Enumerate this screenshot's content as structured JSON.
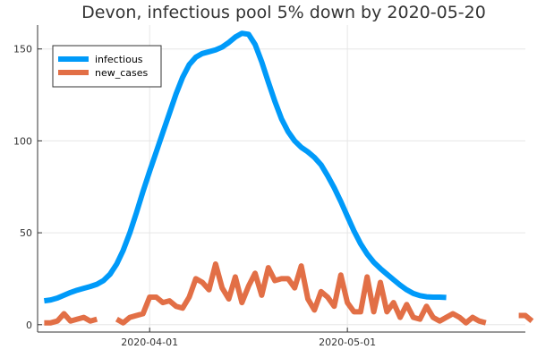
{
  "chart_data": {
    "type": "line",
    "title": "Devon, infectious pool 5% down by 2020-05-20",
    "xlabel": "",
    "ylabel": "",
    "x_start": "2020-03-16",
    "xlim": [
      "2020-03-15",
      "2020-05-28"
    ],
    "ylim": [
      -4,
      163
    ],
    "yticks": [
      0,
      50,
      100,
      150
    ],
    "xticks": [
      "2020-04-01",
      "2020-05-01"
    ],
    "grid": true,
    "legend": "top-left",
    "series": [
      {
        "name": "infectious",
        "color": "#009af9",
        "values": [
          13,
          13.5,
          14.5,
          16,
          17.5,
          18.8,
          19.8,
          20.8,
          22,
          24,
          27.5,
          33,
          40.5,
          50,
          61,
          72.5,
          83.5,
          94,
          104.5,
          115,
          125.5,
          134.5,
          141.5,
          145.5,
          147.5,
          148.5,
          149.5,
          151,
          153.5,
          156.5,
          158.5,
          158,
          152.5,
          143,
          132,
          121.5,
          112,
          105,
          100,
          96.5,
          94,
          91,
          87,
          81,
          74.5,
          67,
          59,
          51,
          44,
          38.5,
          34,
          30.5,
          27.5,
          24.5,
          21.5,
          19,
          17,
          15.8,
          15.2,
          15,
          15,
          14.8
        ]
      },
      {
        "name": "new_cases",
        "color": "#e26f46",
        "values": [
          1,
          1,
          2,
          6,
          2,
          3,
          4,
          2,
          3,
          null,
          null,
          3,
          1,
          4,
          5,
          6,
          15,
          15,
          12,
          13,
          10,
          9,
          15,
          25,
          23,
          19,
          33,
          20,
          14,
          26,
          12,
          21,
          28,
          16,
          31,
          24,
          25,
          25,
          20,
          32,
          14,
          8,
          18,
          15,
          10,
          27,
          12,
          7,
          7,
          26,
          7,
          23,
          7,
          12,
          4,
          11,
          4,
          3,
          10,
          4,
          2,
          4,
          6,
          4,
          1,
          4,
          2,
          1,
          null,
          null,
          null,
          null,
          5,
          5,
          2
        ]
      }
    ]
  }
}
